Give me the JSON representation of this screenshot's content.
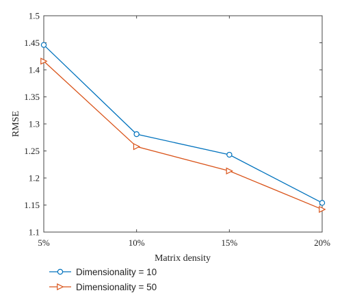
{
  "chart_data": {
    "type": "line",
    "x": [
      "5%",
      "10%",
      "15%",
      "20%"
    ],
    "xlabel": "Matrix density",
    "ylabel": "RMSE",
    "ylim": [
      1.1,
      1.5
    ],
    "yticks": [
      "1.1",
      "1.15",
      "1.2",
      "1.25",
      "1.3",
      "1.35",
      "1.4",
      "1.45",
      "1.5"
    ],
    "grid": false,
    "legend_position": "bottom-left, below axes",
    "series": [
      {
        "name": "Dimensionality = 10",
        "values": [
          1.446,
          1.281,
          1.243,
          1.154
        ],
        "marker": "circle",
        "color": "#0072BD"
      },
      {
        "name": "Dimensionality = 50",
        "values": [
          1.416,
          1.258,
          1.213,
          1.142
        ],
        "marker": "triangle-right",
        "color": "#D95319"
      }
    ]
  }
}
